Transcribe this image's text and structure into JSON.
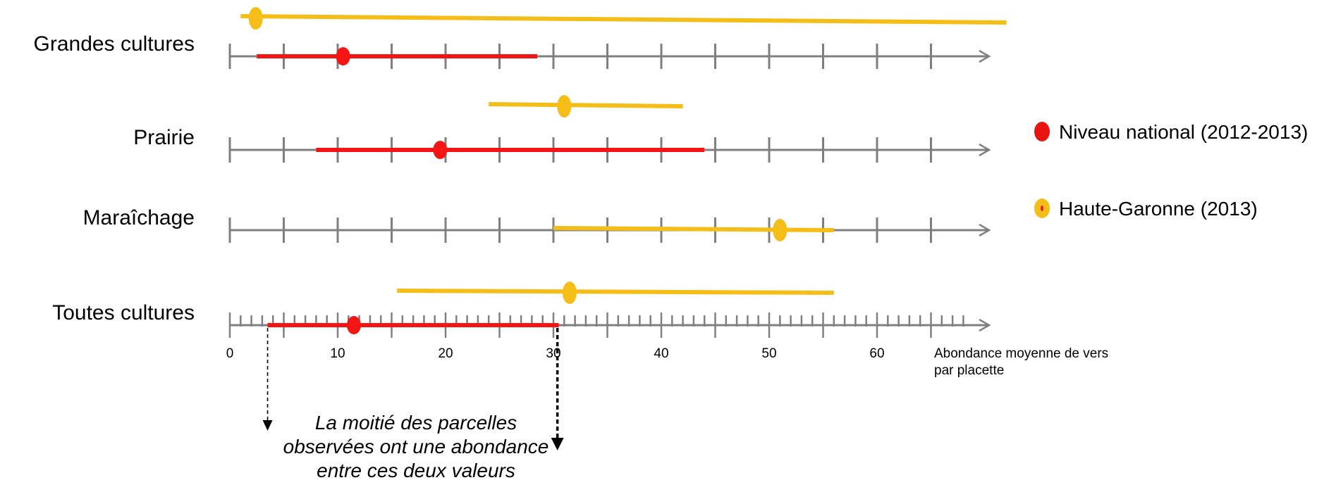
{
  "chart_data": {
    "type": "range",
    "xlabel_lines": [
      "Abondance moyenne de vers",
      "par placette"
    ],
    "xlim": [
      0,
      70
    ],
    "x_ticks": [
      0,
      10,
      20,
      30,
      40,
      50,
      60
    ],
    "rows": [
      {
        "label": "Grandes cultures",
        "national": {
          "low": 2.5,
          "median": 10.5,
          "high": 28.5
        },
        "haute_garonne": {
          "low": 1.0,
          "median": 2.4,
          "high": 72.0
        }
      },
      {
        "label": "Prairie",
        "national": {
          "low": 8.0,
          "median": 19.5,
          "high": 44.0
        },
        "haute_garonne": {
          "low": 24.0,
          "median": 31.0,
          "high": 42.0
        }
      },
      {
        "label": "Maraîchage",
        "national": null,
        "haute_garonne": {
          "low": 30.0,
          "median": 51.0,
          "high": 56.0
        }
      },
      {
        "label": "Toutes cultures",
        "national": {
          "low": 3.5,
          "median": 11.5,
          "high": 30.5
        },
        "haute_garonne": {
          "low": 15.5,
          "median": 31.5,
          "high": 56.0
        }
      }
    ],
    "legend": [
      {
        "label": "Niveau national  (2012-2013)",
        "color": "#e8140f"
      },
      {
        "label": "Haute-Garonne (2013)",
        "color": "#f5bd18"
      }
    ],
    "annotation_lines": [
      "La moitié des parcelles",
      "observées ont une abondance",
      "entre ces deux valeurs"
    ],
    "colors": {
      "national": "#f51414",
      "haute_garonne": "#f5bd18",
      "axis": "#7f7f7f"
    }
  }
}
